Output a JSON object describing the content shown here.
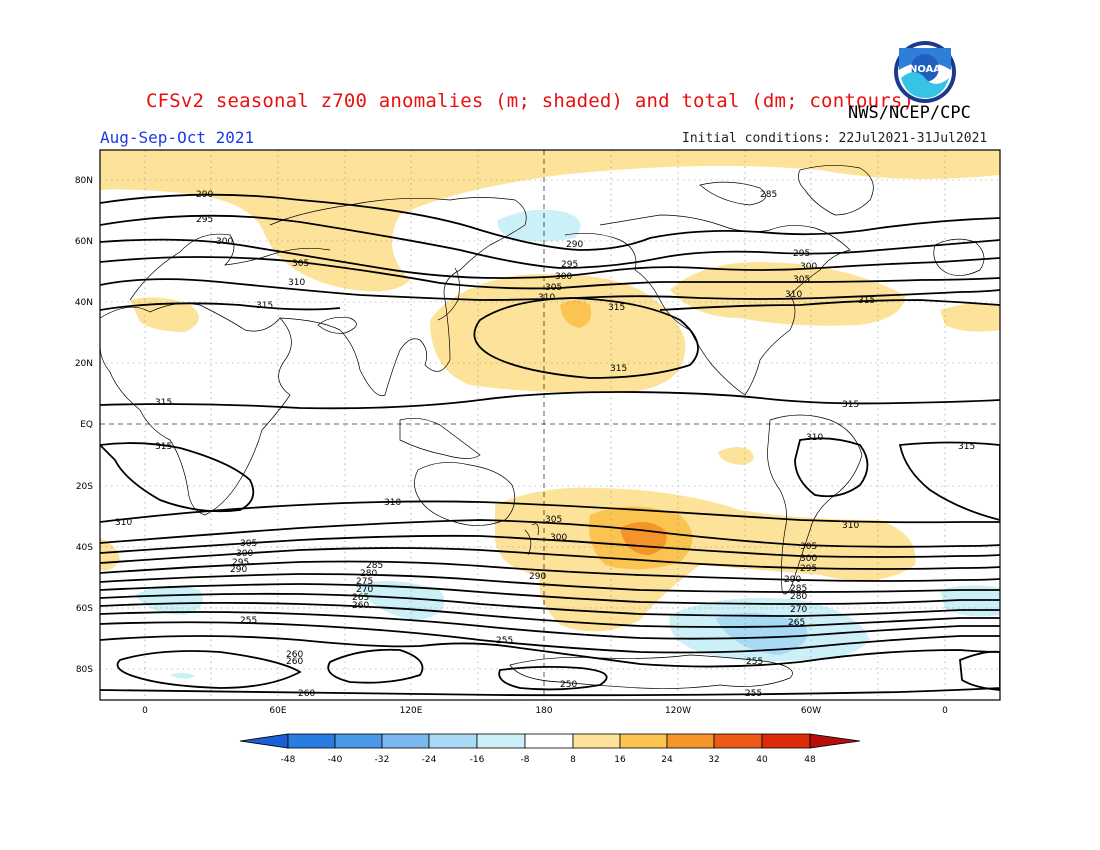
{
  "header": {
    "title": "CFSv2 seasonal z700 anomalies (m; shaded) and total (dm; contours)",
    "agency": "NWS/NCEP/CPC",
    "period": "Aug-Sep-Oct 2021",
    "initial_conditions": "Initial conditions: 22Jul2021-31Jul2021",
    "logo_text": "NOAA"
  },
  "map": {
    "lat_labels": [
      "80N",
      "60N",
      "40N",
      "20N",
      "EQ",
      "20S",
      "40S",
      "60S",
      "80S"
    ],
    "lon_labels": [
      "0",
      "60E",
      "120E",
      "180",
      "120W",
      "60W",
      "0"
    ],
    "contour_labels": [
      "290",
      "295",
      "300",
      "305",
      "310",
      "315",
      "315",
      "315",
      "315",
      "315",
      "315",
      "310",
      "310",
      "310",
      "305",
      "300",
      "295",
      "290",
      "285",
      "280",
      "275",
      "270",
      "265",
      "260",
      "255",
      "255",
      "260",
      "250",
      "255",
      "260",
      "255",
      "260",
      "265",
      "270",
      "280",
      "285",
      "290",
      "295",
      "300",
      "305",
      "310",
      "315",
      "310",
      "305",
      "300",
      "295",
      "290",
      "285",
      "295",
      "300",
      "305",
      "310",
      "315",
      "290",
      "305",
      "300"
    ]
  },
  "colorbar": {
    "labels": [
      "-48",
      "-40",
      "-32",
      "-24",
      "-16",
      "-8",
      "8",
      "16",
      "24",
      "32",
      "40",
      "48"
    ],
    "colors": [
      "#1b5fd6",
      "#2a7de0",
      "#4a98e8",
      "#7ab8f0",
      "#a8daf6",
      "#ccf0f8",
      "#ffffff",
      "#fde39a",
      "#fbc451",
      "#f59428",
      "#ed5a17",
      "#dc2c0c",
      "#b30f0b"
    ]
  }
}
